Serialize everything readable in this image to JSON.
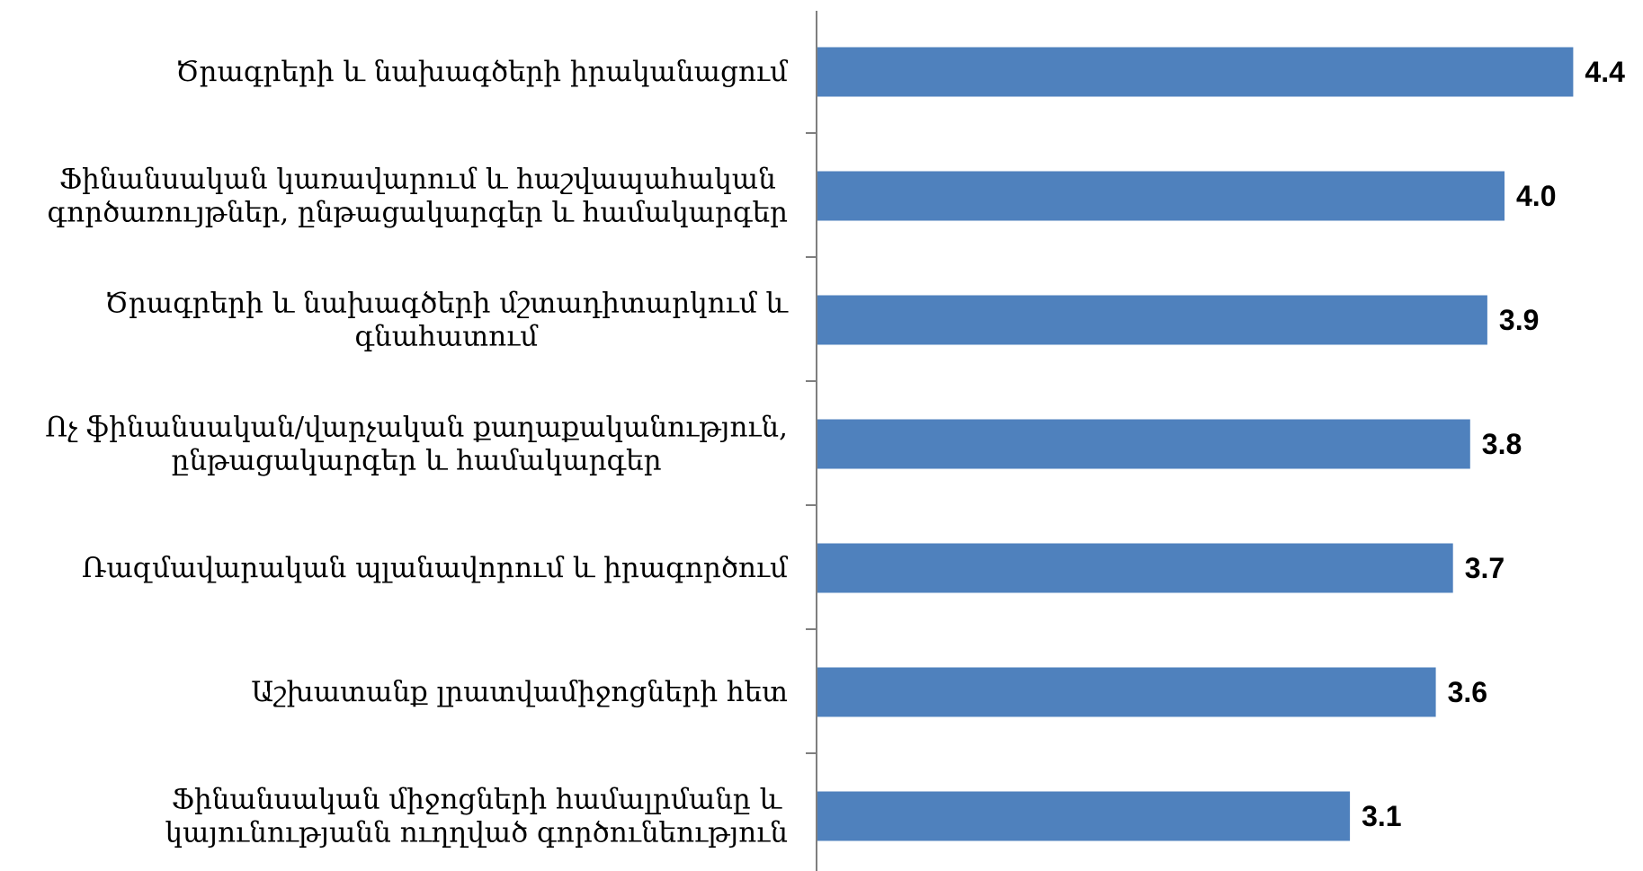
{
  "chart_data": {
    "type": "bar",
    "orientation": "horizontal",
    "categories": [
      [
        "Ծրագրերի և նախագծերի իրականացում"
      ],
      [
        "Ֆինանսական կառավարում և հաշվապահական",
        "գործառույթներ, ընթացակարգեր և համակարգեր"
      ],
      [
        "Ծրագրերի և նախագծերի մշտադիտարկում և",
        "գնահատում"
      ],
      [
        "Ոչ ֆինանսական/վարչական քաղաքականություն,",
        "ընթացակարգեր և համակարգեր"
      ],
      [
        "Ռազմավարական պլանավորում և իրագործում"
      ],
      [
        "Աշխատանք լրատվամիջոցների հետ"
      ],
      [
        "Ֆինանսական միջոցների համալրմանը և",
        "կայունությանն ուղղված գործունեություն"
      ]
    ],
    "values": [
      4.4,
      4.0,
      3.9,
      3.8,
      3.7,
      3.6,
      3.1
    ],
    "value_labels": [
      "4.4",
      "4.0",
      "3.9",
      "3.8",
      "3.7",
      "3.6",
      "3.1"
    ],
    "xlim": [
      0,
      4.8
    ],
    "bar_color": "#4F81BD",
    "axis_color": "#7F7F7F",
    "grid": false,
    "legend": "none"
  }
}
